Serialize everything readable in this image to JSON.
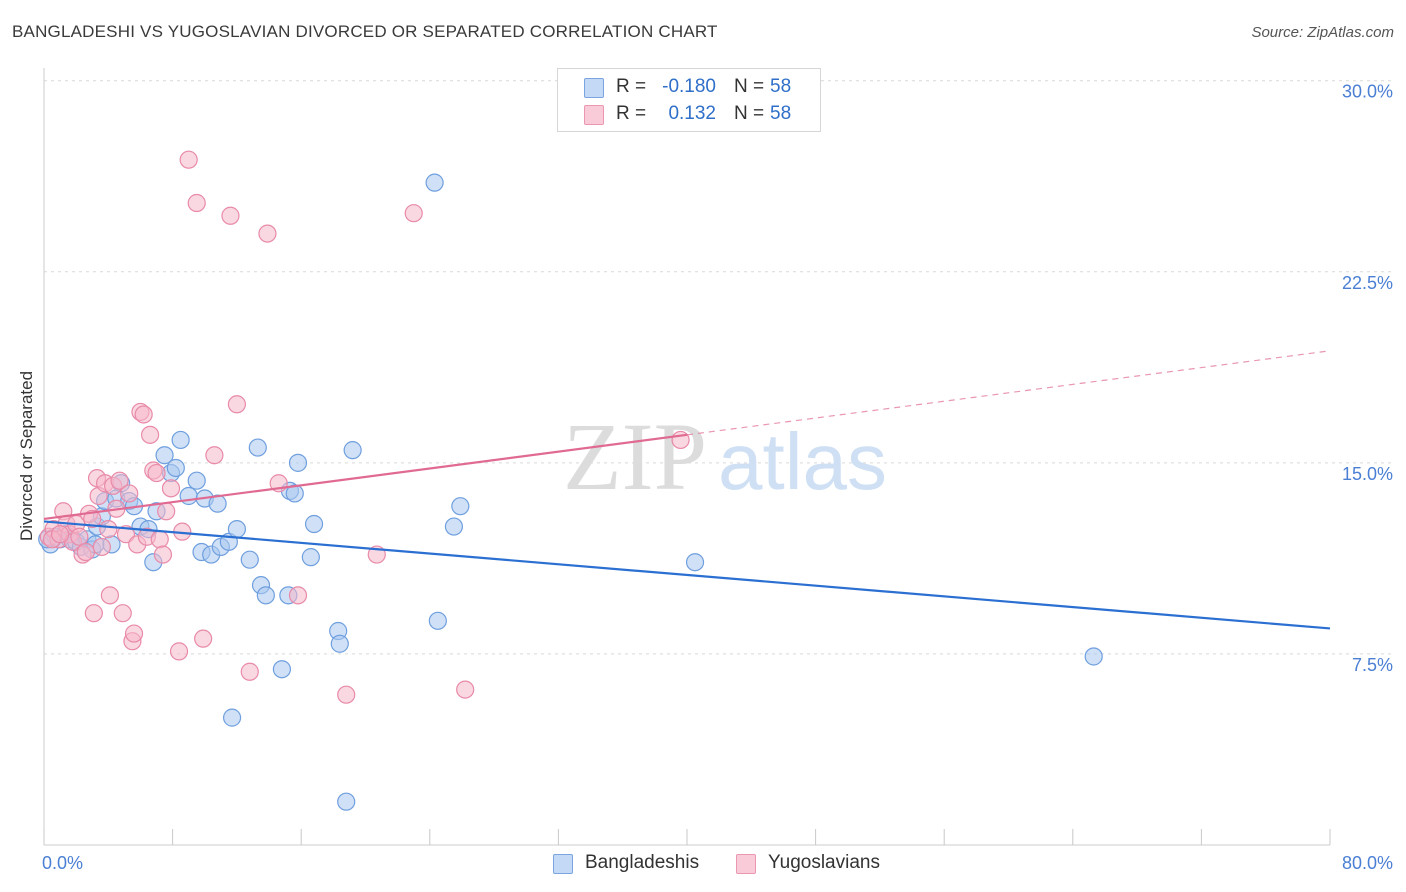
{
  "title": "BANGLADESHI VS YUGOSLAVIAN DIVORCED OR SEPARATED CORRELATION CHART",
  "source": "Source: ZipAtlas.com",
  "watermark": {
    "zip": "ZIP",
    "atlas": "atlas"
  },
  "colors": {
    "blue_fill": "#a9c8f0",
    "blue_stroke": "#6f9fde",
    "blue_line": "#2a6fd1",
    "pink_fill": "#f5b8cb",
    "pink_stroke": "#e88aa8",
    "pink_line": "#e06a91",
    "axis_text": "#4a7fd4",
    "grid": "#d9d9d9"
  },
  "legend": [
    {
      "r_label": "R =",
      "r_value": "-0.180",
      "n_label": "N =",
      "n_value": "58"
    },
    {
      "r_label": "R =",
      "r_value": "0.132",
      "n_label": "N =",
      "n_value": "58"
    }
  ],
  "bottom_legend": [
    {
      "label": "Bangladeshis"
    },
    {
      "label": "Yugoslavians"
    }
  ],
  "chart_data": {
    "type": "scatter",
    "xlabel": "",
    "ylabel": "Divorced or Separated",
    "xlim": [
      0,
      80
    ],
    "ylim": [
      0,
      30.5
    ],
    "x_tick_labels": [
      "0.0%",
      "80.0%"
    ],
    "y_ticks": [
      7.5,
      15.0,
      22.5,
      30.0
    ],
    "y_tick_labels": [
      "7.5%",
      "15.0%",
      "22.5%",
      "30.0%"
    ],
    "grid": true,
    "legend_position": "top-center",
    "series": [
      {
        "name": "Bangladeshis",
        "trend": {
          "x0": 0,
          "y0": 12.7,
          "x1": 80,
          "y1": 8.5,
          "solid_to": 80
        },
        "points": [
          [
            0.4,
            11.8
          ],
          [
            0.7,
            12.1
          ],
          [
            1.0,
            12.0
          ],
          [
            1.3,
            12.2
          ],
          [
            1.6,
            12.0
          ],
          [
            2.0,
            11.9
          ],
          [
            2.3,
            11.7
          ],
          [
            2.7,
            12.0
          ],
          [
            3.0,
            11.6
          ],
          [
            3.2,
            11.8
          ],
          [
            3.3,
            12.5
          ],
          [
            3.6,
            12.9
          ],
          [
            3.8,
            13.5
          ],
          [
            4.2,
            11.8
          ],
          [
            4.5,
            13.6
          ],
          [
            4.8,
            14.2
          ],
          [
            5.3,
            13.5
          ],
          [
            5.6,
            13.3
          ],
          [
            6.0,
            12.5
          ],
          [
            6.5,
            12.4
          ],
          [
            6.8,
            11.1
          ],
          [
            7.0,
            13.1
          ],
          [
            7.5,
            15.3
          ],
          [
            7.9,
            14.6
          ],
          [
            8.2,
            14.8
          ],
          [
            8.5,
            15.9
          ],
          [
            9.0,
            13.7
          ],
          [
            9.5,
            14.3
          ],
          [
            9.8,
            11.5
          ],
          [
            10.0,
            13.6
          ],
          [
            10.4,
            11.4
          ],
          [
            10.8,
            13.4
          ],
          [
            11.0,
            11.7
          ],
          [
            11.5,
            11.9
          ],
          [
            12.0,
            12.4
          ],
          [
            11.7,
            5.0
          ],
          [
            12.8,
            11.2
          ],
          [
            13.3,
            15.6
          ],
          [
            13.5,
            10.2
          ],
          [
            13.8,
            9.8
          ],
          [
            14.8,
            6.9
          ],
          [
            15.2,
            9.8
          ],
          [
            15.3,
            13.9
          ],
          [
            15.6,
            13.8
          ],
          [
            15.8,
            15.0
          ],
          [
            16.8,
            12.6
          ],
          [
            16.6,
            11.3
          ],
          [
            18.3,
            8.4
          ],
          [
            18.4,
            7.9
          ],
          [
            19.2,
            15.5
          ],
          [
            18.8,
            1.7
          ],
          [
            24.5,
            8.8
          ],
          [
            25.5,
            12.5
          ],
          [
            25.9,
            13.3
          ],
          [
            24.3,
            26.0
          ],
          [
            40.5,
            11.1
          ],
          [
            65.3,
            7.4
          ],
          [
            0.2,
            12.0
          ]
        ]
      },
      {
        "name": "Yugoslavians",
        "trend": {
          "x0": 0,
          "y0": 12.8,
          "x1": 80,
          "y1": 19.4,
          "solid_to": 40
        },
        "points": [
          [
            0.3,
            12.1
          ],
          [
            0.6,
            12.4
          ],
          [
            0.9,
            12.0
          ],
          [
            1.2,
            13.1
          ],
          [
            1.4,
            12.6
          ],
          [
            1.6,
            12.2
          ],
          [
            1.8,
            11.9
          ],
          [
            2.0,
            12.6
          ],
          [
            2.2,
            12.1
          ],
          [
            2.4,
            11.4
          ],
          [
            2.6,
            11.5
          ],
          [
            2.8,
            13.0
          ],
          [
            3.0,
            12.8
          ],
          [
            3.1,
            9.1
          ],
          [
            3.3,
            14.4
          ],
          [
            3.4,
            13.7
          ],
          [
            3.6,
            11.7
          ],
          [
            3.8,
            14.2
          ],
          [
            4.0,
            12.4
          ],
          [
            4.1,
            9.8
          ],
          [
            4.3,
            14.1
          ],
          [
            4.5,
            13.2
          ],
          [
            4.7,
            14.3
          ],
          [
            4.9,
            9.1
          ],
          [
            5.1,
            12.2
          ],
          [
            5.3,
            13.8
          ],
          [
            5.5,
            8.0
          ],
          [
            5.6,
            8.3
          ],
          [
            5.8,
            11.8
          ],
          [
            6.0,
            17.0
          ],
          [
            6.2,
            16.9
          ],
          [
            6.4,
            12.1
          ],
          [
            6.6,
            16.1
          ],
          [
            6.8,
            14.7
          ],
          [
            7.0,
            14.6
          ],
          [
            7.2,
            12.0
          ],
          [
            7.4,
            11.4
          ],
          [
            7.6,
            13.1
          ],
          [
            7.9,
            14.0
          ],
          [
            8.4,
            7.6
          ],
          [
            8.6,
            12.3
          ],
          [
            9.0,
            26.9
          ],
          [
            9.5,
            25.2
          ],
          [
            9.9,
            8.1
          ],
          [
            10.6,
            15.3
          ],
          [
            11.6,
            24.7
          ],
          [
            12.0,
            17.3
          ],
          [
            12.8,
            6.8
          ],
          [
            13.9,
            24.0
          ],
          [
            14.6,
            14.2
          ],
          [
            15.8,
            9.8
          ],
          [
            18.8,
            5.9
          ],
          [
            20.7,
            11.4
          ],
          [
            23.0,
            24.8
          ],
          [
            26.2,
            6.1
          ],
          [
            39.6,
            15.9
          ],
          [
            0.5,
            12.0
          ],
          [
            1.0,
            12.2
          ]
        ]
      }
    ]
  }
}
